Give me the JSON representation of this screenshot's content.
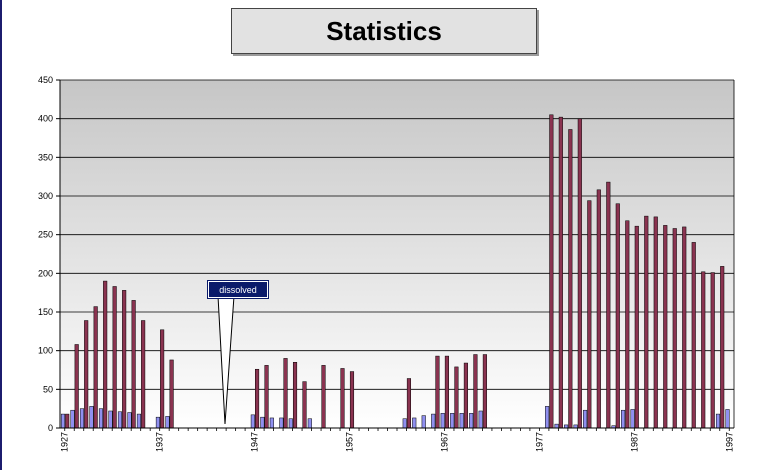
{
  "chart_data": {
    "type": "bar",
    "title": "Statistics",
    "xlabel": "",
    "ylabel": "",
    "ylim": [
      0,
      450
    ],
    "yticks": [
      0,
      50,
      100,
      150,
      200,
      250,
      300,
      350,
      400,
      450
    ],
    "xticks": [
      "1927",
      "1937",
      "1947",
      "1957",
      "1967",
      "1977",
      "1987",
      "1997"
    ],
    "grid": true,
    "categories": [
      "1927",
      "1928",
      "1929",
      "1930",
      "1931",
      "1932",
      "1933",
      "1934",
      "1935",
      "1936",
      "1937",
      "1938",
      "1939",
      "1940",
      "1941",
      "1942",
      "1943",
      "1944",
      "1945",
      "1946",
      "1947",
      "1948",
      "1949",
      "1950",
      "1951",
      "1952",
      "1953",
      "1954",
      "1955",
      "1956",
      "1957",
      "1958",
      "1959",
      "1960",
      "1961",
      "1962",
      "1963",
      "1964",
      "1965",
      "1966",
      "1967",
      "1968",
      "1969",
      "1970",
      "1971",
      "1972",
      "1973",
      "1974",
      "1975",
      "1976",
      "1977",
      "1978",
      "1979",
      "1980",
      "1981",
      "1982",
      "1983",
      "1984",
      "1985",
      "1986",
      "1987",
      "1988",
      "1989",
      "1990",
      "1991",
      "1992",
      "1993",
      "1994",
      "1995",
      "1996",
      "1997"
    ],
    "series": [
      {
        "color": "#9090f0",
        "values": [
          18,
          23,
          25,
          28,
          25,
          22,
          21,
          20,
          18,
          0,
          14,
          15,
          0,
          0,
          0,
          0,
          0,
          0,
          0,
          0,
          17,
          14,
          13,
          13,
          12,
          0,
          12,
          0,
          0,
          0,
          0,
          0,
          0,
          0,
          0,
          0,
          12,
          13,
          16,
          18,
          19,
          19,
          19,
          19,
          22,
          0,
          0,
          0,
          0,
          0,
          0,
          28,
          5,
          4,
          4,
          23,
          0,
          0,
          3,
          23,
          24,
          0,
          0,
          0,
          0,
          0,
          0,
          0,
          0,
          18,
          24
        ]
      },
      {
        "color": "#8a3350",
        "values": [
          18,
          108,
          139,
          157,
          190,
          183,
          178,
          165,
          139,
          0,
          127,
          88,
          0,
          0,
          0,
          0,
          0,
          0,
          0,
          0,
          76,
          81,
          0,
          90,
          85,
          60,
          0,
          81,
          0,
          77,
          73,
          0,
          0,
          0,
          0,
          0,
          64,
          0,
          0,
          93,
          93,
          79,
          84,
          95,
          95,
          0,
          0,
          0,
          0,
          0,
          0,
          405,
          402,
          386,
          400,
          294,
          308,
          318,
          290,
          268,
          261,
          274,
          273,
          262,
          258,
          260,
          240,
          202,
          201,
          209,
          0
        ]
      }
    ],
    "annotations": [
      {
        "text": "dissolved",
        "x": "1941"
      }
    ]
  }
}
